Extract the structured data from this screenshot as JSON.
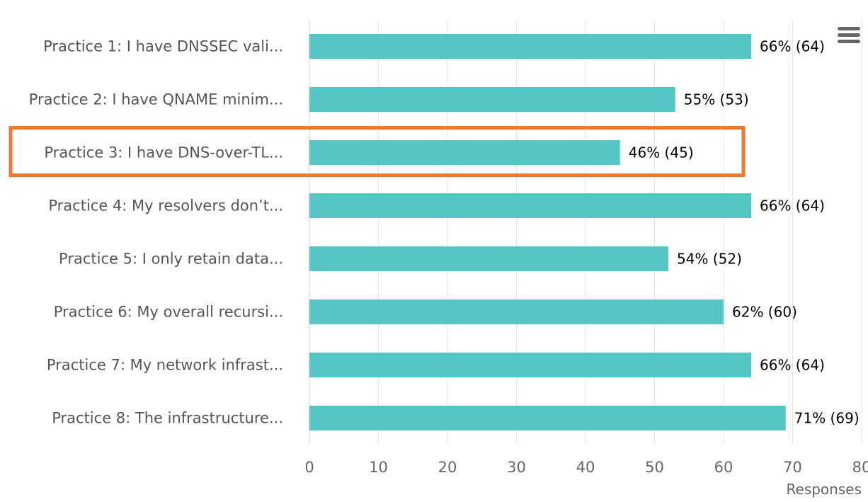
{
  "chart_data": {
    "type": "bar",
    "orientation": "horizontal",
    "categories": [
      "Practice 1: I have DNSSEC vali...",
      "Practice 2: I have QNAME minim...",
      "Practice 3: I have DNS-over-TL...",
      "Practice 4: My resolvers don’t...",
      "Practice 5: I only retain data...",
      "Practice 6: My overall recursi...",
      "Practice 7: My network infrast...",
      "Practice 8: The infrastructure..."
    ],
    "values": [
      64,
      53,
      45,
      64,
      52,
      60,
      64,
      69
    ],
    "data_labels": [
      "66% (64)",
      "55% (53)",
      "46% (45)",
      "66% (64)",
      "54% (52)",
      "62% (60)",
      "66% (64)",
      "71% (69)"
    ],
    "xlabel": "Responses",
    "xlim": [
      0,
      80
    ],
    "xticks": [
      0,
      10,
      20,
      30,
      40,
      50,
      60,
      70,
      80
    ],
    "grid": true,
    "highlighted_category_index": 2,
    "colors": {
      "bar": "#55c6c6",
      "grid": "#e6e6e6",
      "highlight": "#ea7b35",
      "axis_line": "#ccd6eb",
      "menu_icon": "#666666"
    }
  },
  "toolbar": {
    "menu_icon": "hamburger-menu-icon"
  }
}
